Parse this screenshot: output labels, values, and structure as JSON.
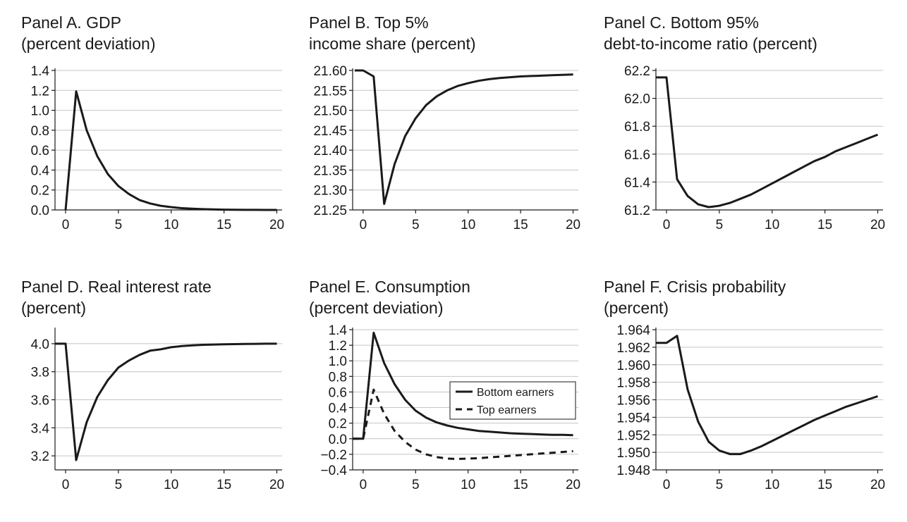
{
  "chart_data": [
    {
      "id": "A",
      "type": "line",
      "title": [
        "Panel A. GDP",
        "(percent deviation)"
      ],
      "xlim": [
        -1,
        20.5
      ],
      "ylim": [
        0,
        1.4
      ],
      "xticks": [
        0,
        5,
        10,
        15,
        20
      ],
      "yticks": [
        0.0,
        0.2,
        0.4,
        0.6,
        0.8,
        1.0,
        1.2,
        1.4
      ],
      "ytick_labels": [
        "0.0",
        "0.2",
        "0.4",
        "0.6",
        "0.8",
        "1.0",
        "1.2",
        "1.4"
      ],
      "grid": true,
      "series": [
        {
          "style": "solid",
          "x": [
            0,
            1,
            2,
            3,
            4,
            5,
            6,
            7,
            8,
            9,
            10,
            11,
            12,
            13,
            14,
            15,
            16,
            17,
            18,
            19,
            20
          ],
          "y": [
            0.0,
            1.19,
            0.8,
            0.54,
            0.36,
            0.24,
            0.16,
            0.1,
            0.065,
            0.042,
            0.028,
            0.018,
            0.012,
            0.008,
            0.005,
            0.003,
            0.002,
            0.001,
            0.001,
            0.0,
            0.0
          ]
        }
      ]
    },
    {
      "id": "B",
      "type": "line",
      "title": [
        "Panel B. Top 5%",
        "income share (percent)"
      ],
      "xlim": [
        -1,
        20.5
      ],
      "ylim": [
        21.25,
        21.6
      ],
      "xticks": [
        0,
        5,
        10,
        15,
        20
      ],
      "yticks": [
        21.25,
        21.3,
        21.35,
        21.4,
        21.45,
        21.5,
        21.55,
        21.6
      ],
      "ytick_labels": [
        "21.25",
        "21.30",
        "21.35",
        "21.40",
        "21.45",
        "21.50",
        "21.55",
        "21.60"
      ],
      "grid": true,
      "series": [
        {
          "style": "solid",
          "x": [
            -0.8,
            0,
            1,
            2,
            3,
            4,
            5,
            6,
            7,
            8,
            9,
            10,
            11,
            12,
            13,
            14,
            15,
            16,
            17,
            18,
            19,
            20
          ],
          "y": [
            21.6,
            21.6,
            21.585,
            21.265,
            21.365,
            21.435,
            21.48,
            21.513,
            21.535,
            21.55,
            21.561,
            21.568,
            21.574,
            21.578,
            21.581,
            21.583,
            21.585,
            21.586,
            21.587,
            21.588,
            21.589,
            21.59
          ]
        }
      ]
    },
    {
      "id": "C",
      "type": "line",
      "title": [
        "Panel C. Bottom 95%",
        "debt-to-income ratio (percent)"
      ],
      "xlim": [
        -1,
        20.5
      ],
      "ylim": [
        61.2,
        62.2
      ],
      "xticks": [
        0,
        5,
        10,
        15,
        20
      ],
      "yticks": [
        61.2,
        61.4,
        61.6,
        61.8,
        62.0,
        62.2
      ],
      "ytick_labels": [
        "61.2",
        "61.4",
        "61.6",
        "61.8",
        "62.0",
        "62.2"
      ],
      "grid": true,
      "series": [
        {
          "style": "solid",
          "x": [
            -1,
            0,
            1,
            2,
            3,
            4,
            5,
            6,
            7,
            8,
            9,
            10,
            11,
            12,
            13,
            14,
            15,
            16,
            17,
            18,
            19,
            20
          ],
          "y": [
            62.15,
            62.15,
            61.42,
            61.3,
            61.24,
            61.22,
            61.23,
            61.25,
            61.28,
            61.31,
            61.35,
            61.39,
            61.43,
            61.47,
            61.51,
            61.55,
            61.58,
            61.62,
            61.65,
            61.68,
            61.71,
            61.74
          ]
        }
      ]
    },
    {
      "id": "D",
      "type": "line",
      "title": [
        "Panel D. Real interest rate",
        "(percent)"
      ],
      "xlim": [
        -1,
        20.5
      ],
      "ylim": [
        3.1,
        4.1
      ],
      "xticks": [
        0,
        5,
        10,
        15,
        20
      ],
      "yticks": [
        3.2,
        3.4,
        3.6,
        3.8,
        4.0
      ],
      "ytick_labels": [
        "3.2",
        "3.4",
        "3.6",
        "3.8",
        "4.0"
      ],
      "grid": true,
      "series": [
        {
          "style": "solid",
          "x": [
            -1,
            0,
            1,
            2,
            3,
            4,
            5,
            6,
            7,
            8,
            9,
            10,
            11,
            12,
            13,
            14,
            15,
            16,
            17,
            18,
            19,
            20
          ],
          "y": [
            4.0,
            4.0,
            3.17,
            3.44,
            3.62,
            3.74,
            3.83,
            3.88,
            3.92,
            3.95,
            3.96,
            3.975,
            3.983,
            3.988,
            3.992,
            3.994,
            3.996,
            3.997,
            3.998,
            3.999,
            4.0,
            4.0
          ]
        }
      ]
    },
    {
      "id": "E",
      "type": "line",
      "title": [
        "Panel E. Consumption",
        "(percent deviation)"
      ],
      "xlim": [
        -1,
        20.5
      ],
      "ylim": [
        -0.4,
        1.4
      ],
      "xticks": [
        0,
        5,
        10,
        15,
        20
      ],
      "yticks": [
        -0.4,
        -0.2,
        0.0,
        0.2,
        0.4,
        0.6,
        0.8,
        1.0,
        1.2,
        1.4
      ],
      "ytick_labels": [
        "−0.4",
        "−0.2",
        "0.0",
        "0.2",
        "0.4",
        "0.6",
        "0.8",
        "1.0",
        "1.2",
        "1.4"
      ],
      "grid": true,
      "legend": {
        "position": "center-right",
        "entries": [
          "Bottom earners",
          "Top earners"
        ]
      },
      "series": [
        {
          "name": "Bottom earners",
          "style": "solid",
          "x": [
            -1,
            0,
            1,
            2,
            3,
            4,
            5,
            6,
            7,
            8,
            9,
            10,
            11,
            12,
            13,
            14,
            15,
            16,
            17,
            18,
            19,
            20
          ],
          "y": [
            0.0,
            0.0,
            1.36,
            0.97,
            0.7,
            0.5,
            0.36,
            0.27,
            0.21,
            0.17,
            0.14,
            0.12,
            0.1,
            0.09,
            0.08,
            0.07,
            0.065,
            0.06,
            0.055,
            0.05,
            0.05,
            0.045
          ]
        },
        {
          "name": "Top earners",
          "style": "dashed",
          "x": [
            -1,
            0,
            1,
            2,
            3,
            4,
            5,
            6,
            7,
            8,
            9,
            10,
            11,
            12,
            13,
            14,
            15,
            16,
            17,
            18,
            19,
            20
          ],
          "y": [
            0.0,
            0.0,
            0.63,
            0.32,
            0.1,
            -0.04,
            -0.14,
            -0.2,
            -0.235,
            -0.255,
            -0.26,
            -0.255,
            -0.25,
            -0.24,
            -0.23,
            -0.22,
            -0.21,
            -0.2,
            -0.19,
            -0.18,
            -0.17,
            -0.16
          ]
        }
      ]
    },
    {
      "id": "F",
      "type": "line",
      "title": [
        "Panel F. Crisis probability",
        "(percent)"
      ],
      "xlim": [
        -1,
        20.5
      ],
      "ylim": [
        1.948,
        1.964
      ],
      "xticks": [
        0,
        5,
        10,
        15,
        20
      ],
      "yticks": [
        1.948,
        1.95,
        1.952,
        1.954,
        1.956,
        1.958,
        1.96,
        1.962,
        1.964
      ],
      "ytick_labels": [
        "1.948",
        "1.950",
        "1.952",
        "1.954",
        "1.956",
        "1.958",
        "1.960",
        "1.962",
        "1.964"
      ],
      "grid": true,
      "series": [
        {
          "style": "solid",
          "x": [
            -1,
            0,
            1,
            2,
            3,
            4,
            5,
            6,
            7,
            8,
            9,
            10,
            11,
            12,
            13,
            14,
            15,
            16,
            17,
            18,
            19,
            20
          ],
          "y": [
            1.9625,
            1.9625,
            1.9633,
            1.9572,
            1.9535,
            1.9512,
            1.9502,
            1.9498,
            1.9498,
            1.9502,
            1.9507,
            1.9513,
            1.9519,
            1.9525,
            1.9531,
            1.9537,
            1.9542,
            1.9547,
            1.9552,
            1.9556,
            1.956,
            1.9564
          ]
        }
      ]
    }
  ]
}
